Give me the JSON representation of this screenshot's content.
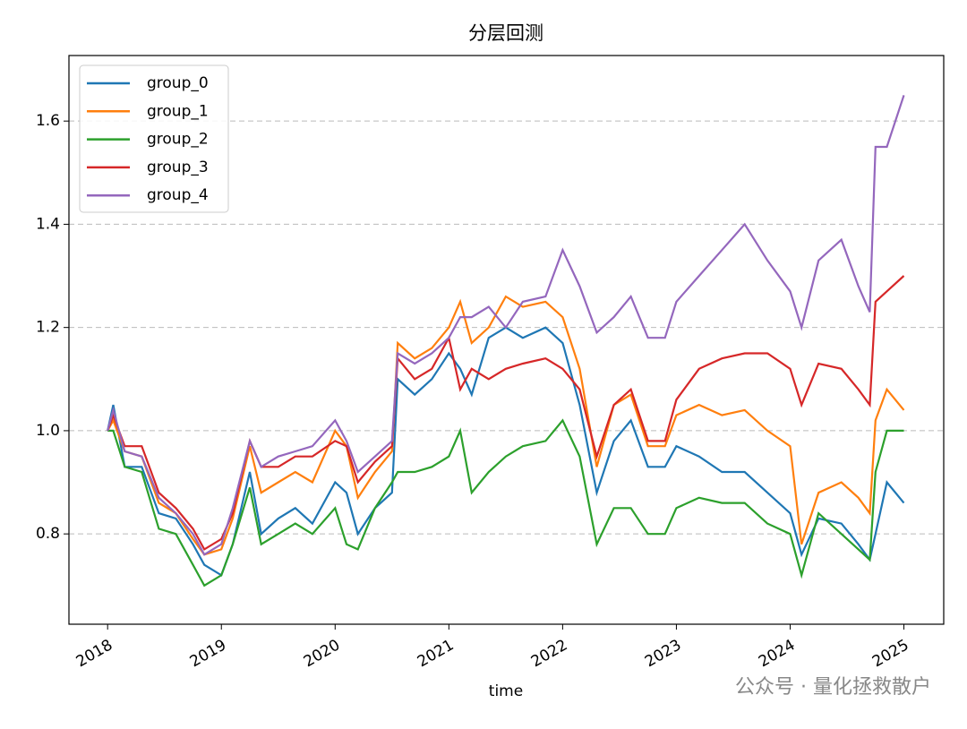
{
  "chart_data": {
    "type": "line",
    "title": "分层回测",
    "xlabel": "time",
    "watermark": "公众号 · 量化拯救散户",
    "x": [
      2018.0,
      2018.05,
      2018.15,
      2018.3,
      2018.45,
      2018.6,
      2018.75,
      2018.85,
      2019.0,
      2019.1,
      2019.25,
      2019.35,
      2019.5,
      2019.65,
      2019.8,
      2020.0,
      2020.1,
      2020.2,
      2020.35,
      2020.5,
      2020.55,
      2020.7,
      2020.85,
      2021.0,
      2021.1,
      2021.2,
      2021.35,
      2021.5,
      2021.65,
      2021.85,
      2022.0,
      2022.15,
      2022.3,
      2022.45,
      2022.6,
      2022.75,
      2022.9,
      2023.0,
      2023.2,
      2023.4,
      2023.6,
      2023.8,
      2024.0,
      2024.1,
      2024.25,
      2024.45,
      2024.6,
      2024.7,
      2024.75,
      2024.85,
      2025.0
    ],
    "series": [
      {
        "name": "group_0",
        "color": "#1f77b4",
        "values": [
          1.0,
          1.05,
          0.93,
          0.93,
          0.84,
          0.83,
          0.78,
          0.74,
          0.72,
          0.78,
          0.92,
          0.8,
          0.83,
          0.85,
          0.82,
          0.9,
          0.88,
          0.8,
          0.85,
          0.88,
          1.1,
          1.07,
          1.1,
          1.15,
          1.12,
          1.07,
          1.18,
          1.2,
          1.18,
          1.2,
          1.17,
          1.05,
          0.88,
          0.98,
          1.02,
          0.93,
          0.93,
          0.97,
          0.95,
          0.92,
          0.92,
          0.88,
          0.84,
          0.76,
          0.83,
          0.82,
          0.78,
          0.75,
          0.8,
          0.9,
          0.86
        ]
      },
      {
        "name": "group_1",
        "color": "#ff7f0e",
        "values": [
          1.0,
          1.02,
          0.96,
          0.95,
          0.86,
          0.84,
          0.79,
          0.76,
          0.77,
          0.83,
          0.97,
          0.88,
          0.9,
          0.92,
          0.9,
          1.0,
          0.97,
          0.87,
          0.92,
          0.96,
          1.17,
          1.14,
          1.16,
          1.2,
          1.25,
          1.17,
          1.2,
          1.26,
          1.24,
          1.25,
          1.22,
          1.12,
          0.93,
          1.05,
          1.07,
          0.97,
          0.97,
          1.03,
          1.05,
          1.03,
          1.04,
          1.0,
          0.97,
          0.78,
          0.88,
          0.9,
          0.87,
          0.84,
          1.02,
          1.08,
          1.04
        ]
      },
      {
        "name": "group_2",
        "color": "#2ca02c",
        "values": [
          1.0,
          1.0,
          0.93,
          0.92,
          0.81,
          0.8,
          0.74,
          0.7,
          0.72,
          0.78,
          0.89,
          0.78,
          0.8,
          0.82,
          0.8,
          0.85,
          0.78,
          0.77,
          0.85,
          0.9,
          0.92,
          0.92,
          0.93,
          0.95,
          1.0,
          0.88,
          0.92,
          0.95,
          0.97,
          0.98,
          1.02,
          0.95,
          0.78,
          0.85,
          0.85,
          0.8,
          0.8,
          0.85,
          0.87,
          0.86,
          0.86,
          0.82,
          0.8,
          0.72,
          0.84,
          0.8,
          0.77,
          0.75,
          0.92,
          1.0,
          1.0
        ]
      },
      {
        "name": "group_3",
        "color": "#d62728",
        "values": [
          1.0,
          1.03,
          0.97,
          0.97,
          0.88,
          0.85,
          0.81,
          0.77,
          0.79,
          0.84,
          0.98,
          0.93,
          0.93,
          0.95,
          0.95,
          0.98,
          0.97,
          0.9,
          0.94,
          0.97,
          1.14,
          1.1,
          1.12,
          1.18,
          1.08,
          1.12,
          1.1,
          1.12,
          1.13,
          1.14,
          1.12,
          1.08,
          0.95,
          1.05,
          1.08,
          0.98,
          0.98,
          1.06,
          1.12,
          1.14,
          1.15,
          1.15,
          1.12,
          1.05,
          1.13,
          1.12,
          1.08,
          1.05,
          1.25,
          1.27,
          1.3
        ]
      },
      {
        "name": "group_4",
        "color": "#9467bd",
        "values": [
          1.0,
          1.04,
          0.96,
          0.95,
          0.87,
          0.84,
          0.8,
          0.76,
          0.78,
          0.85,
          0.98,
          0.93,
          0.95,
          0.96,
          0.97,
          1.02,
          0.98,
          0.92,
          0.95,
          0.98,
          1.15,
          1.13,
          1.15,
          1.18,
          1.22,
          1.22,
          1.24,
          1.2,
          1.25,
          1.26,
          1.35,
          1.28,
          1.19,
          1.22,
          1.26,
          1.18,
          1.18,
          1.25,
          1.3,
          1.35,
          1.4,
          1.33,
          1.27,
          1.2,
          1.33,
          1.37,
          1.28,
          1.23,
          1.55,
          1.55,
          1.65
        ]
      }
    ],
    "xlim": [
      2017.66,
      2025.35
    ],
    "xticks": [
      2018,
      2019,
      2020,
      2021,
      2022,
      2023,
      2024,
      2025
    ],
    "ylim": [
      0.625,
      1.727
    ],
    "yticks": [
      0.8,
      {
        "value": 1.0,
        "label": "1.0"
      },
      1.2,
      1.4,
      1.6
    ],
    "grid": true,
    "legend": "upper left"
  }
}
